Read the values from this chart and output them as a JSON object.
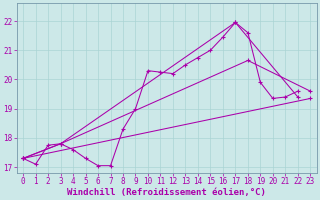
{
  "xlabel": "Windchill (Refroidissement éolien,°C)",
  "xlim": [
    -0.5,
    23.5
  ],
  "ylim": [
    16.8,
    22.6
  ],
  "background_color": "#cce8e8",
  "line_color": "#aa00aa",
  "grid_color": "#aad4d4",
  "spine_color": "#7799aa",
  "xticks": [
    0,
    1,
    2,
    3,
    4,
    5,
    6,
    7,
    8,
    9,
    10,
    11,
    12,
    13,
    14,
    15,
    16,
    17,
    18,
    19,
    20,
    21,
    22,
    23
  ],
  "yticks": [
    17,
    18,
    19,
    20,
    21,
    22
  ],
  "tick_fontsize": 5.5,
  "label_fontsize": 6.5,
  "line1_x": [
    0,
    1,
    2,
    3,
    4,
    5,
    6,
    7,
    8,
    9,
    10,
    11,
    12,
    13,
    14,
    15,
    16,
    17,
    18,
    19,
    20,
    21,
    22
  ],
  "line1_y": [
    17.3,
    17.1,
    17.75,
    17.8,
    17.6,
    17.3,
    17.05,
    17.05,
    18.3,
    19.0,
    20.3,
    20.25,
    20.2,
    20.5,
    20.75,
    21.0,
    21.45,
    21.95,
    21.6,
    19.9,
    19.35,
    19.4,
    19.6
  ],
  "line2_x": [
    0,
    3,
    17,
    22
  ],
  "line2_y": [
    17.3,
    17.8,
    21.95,
    19.4
  ],
  "line3_x": [
    0,
    3,
    18,
    23
  ],
  "line3_y": [
    17.3,
    17.8,
    20.65,
    19.6
  ],
  "line4_x": [
    0,
    23
  ],
  "line4_y": [
    17.3,
    19.35
  ]
}
